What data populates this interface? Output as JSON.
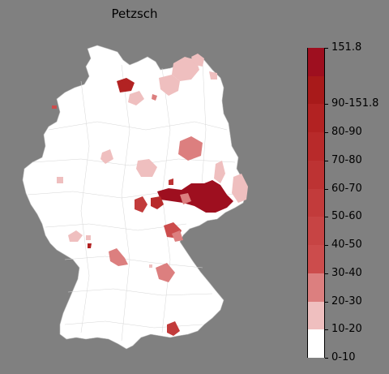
{
  "title": "Petzsch",
  "colors": {
    "background": "#808080",
    "map_base": "#ffffff",
    "border": "#cfcfcf"
  },
  "legend": {
    "max_label": "151.8",
    "classes": [
      {
        "label": "0-10",
        "color": "#ffffff"
      },
      {
        "label": "10-20",
        "color": "#efbfbf"
      },
      {
        "label": "20-30",
        "color": "#dc7f7f"
      },
      {
        "label": "30-40",
        "color": "#cc4c4c"
      },
      {
        "label": "40-50",
        "color": "#c74444"
      },
      {
        "label": "50-60",
        "color": "#c23b3b"
      },
      {
        "label": "60-70",
        "color": "#bd3333"
      },
      {
        "label": "70-80",
        "color": "#b82a2a"
      },
      {
        "label": "80-90",
        "color": "#b22222"
      },
      {
        "label": "90-151.8",
        "color": "#a81a1a"
      },
      {
        "label": "",
        "color": "#9e0f1f"
      }
    ]
  }
}
